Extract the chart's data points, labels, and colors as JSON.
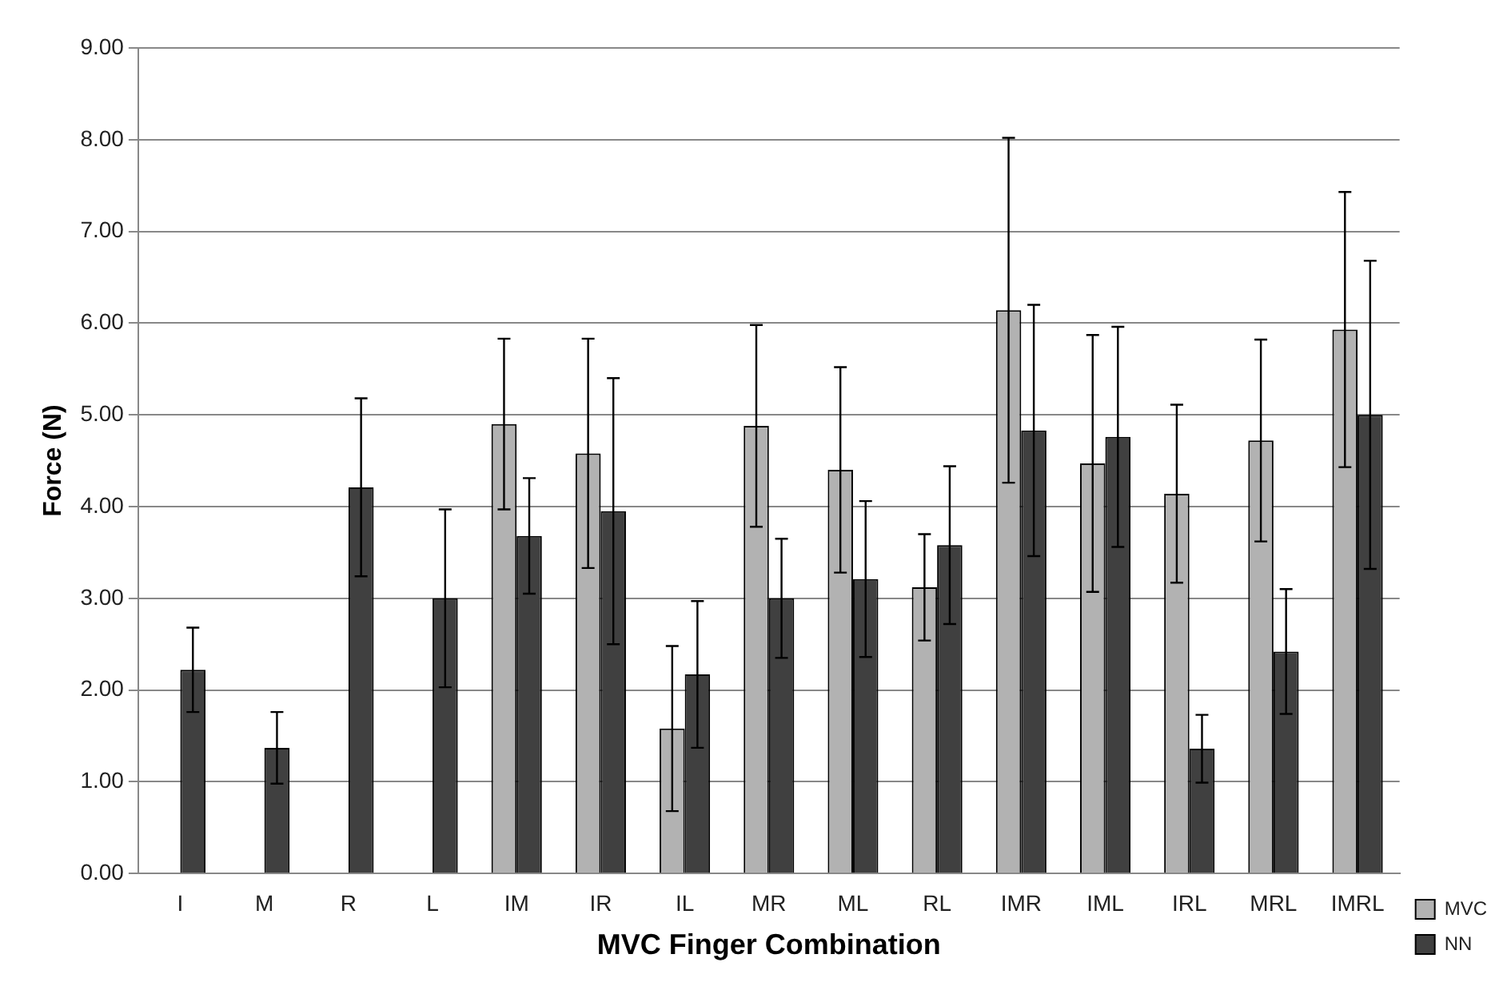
{
  "chart_data": {
    "type": "bar",
    "xlabel": "MVC Finger Combination",
    "ylabel": "Force (N)",
    "categories": [
      "I",
      "M",
      "R",
      "L",
      "IM",
      "IR",
      "IL",
      "MR",
      "ML",
      "RL",
      "IMR",
      "IML",
      "IRL",
      "MRL",
      "IMRL"
    ],
    "series": [
      {
        "name": "MVC",
        "color": "#b2b2b2",
        "values": [
          null,
          null,
          null,
          null,
          4.9,
          4.58,
          1.58,
          4.88,
          4.4,
          3.12,
          6.14,
          4.47,
          4.14,
          4.72,
          5.93
        ],
        "errors": [
          null,
          null,
          null,
          null,
          0.93,
          1.25,
          0.9,
          1.1,
          1.12,
          0.58,
          1.88,
          1.4,
          0.97,
          1.1,
          1.5
        ]
      },
      {
        "name": "NN",
        "color": "#404040",
        "values": [
          2.22,
          1.37,
          4.21,
          3.0,
          3.68,
          3.95,
          2.17,
          3.0,
          3.21,
          3.58,
          4.83,
          4.76,
          1.36,
          2.42,
          5.0
        ],
        "errors": [
          0.46,
          0.39,
          0.97,
          0.97,
          0.63,
          1.45,
          0.8,
          0.65,
          0.85,
          0.86,
          1.37,
          1.2,
          0.37,
          0.68,
          1.68
        ]
      }
    ],
    "ylim": [
      0,
      9
    ],
    "yticks": [
      {
        "value": 0,
        "label": "0.00"
      },
      {
        "value": 1,
        "label": "1.00"
      },
      {
        "value": 2,
        "label": "2.00"
      },
      {
        "value": 3,
        "label": "3.00"
      },
      {
        "value": 4,
        "label": "4.00"
      },
      {
        "value": 5,
        "label": "5.00"
      },
      {
        "value": 6,
        "label": "6.00"
      },
      {
        "value": 7,
        "label": "7.00"
      },
      {
        "value": 8,
        "label": "8.00"
      },
      {
        "value": 9,
        "label": "9.00"
      }
    ],
    "grid": "y",
    "legend": "bottom right"
  }
}
